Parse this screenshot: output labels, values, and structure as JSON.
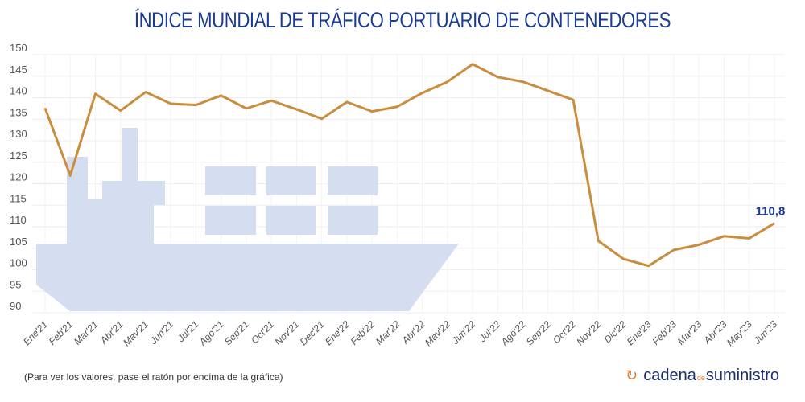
{
  "chart_data": {
    "type": "line",
    "title": "ÍNDICE MUNDIAL DE TRÁFICO PORTUARIO DE CONTENEDORES",
    "categories": [
      "Ene'21",
      "Feb'21",
      "Mar'21",
      "Abr'21",
      "May'21",
      "Jun'21",
      "Jul'21",
      "Ago'21",
      "Sep'21",
      "Oct'21",
      "Nov'21",
      "Dec'21",
      "Ene'22",
      "Feb'22",
      "Mar'22",
      "Abr'22",
      "May'22",
      "Jun'22",
      "Jul'22",
      "Ago'22",
      "Sep'22",
      "Oct'22",
      "Nov'22",
      "Dic'22",
      "Ene'23",
      "Feb'23",
      "Mar'23",
      "Abr'23",
      "May'23",
      "Jun'23"
    ],
    "values": [
      137.6,
      121.9,
      140.9,
      137.0,
      141.3,
      138.6,
      138.3,
      140.5,
      137.5,
      139.3,
      137.3,
      135.1,
      139.0,
      136.8,
      137.9,
      141.1,
      143.7,
      147.8,
      144.8,
      143.7,
      141.6,
      139.5,
      106.7,
      102.5,
      100.9,
      104.6,
      105.8,
      107.8,
      107.3,
      110.8
    ],
    "ylim": [
      90,
      150
    ],
    "yticks": [
      90,
      95,
      100,
      105,
      110,
      115,
      120,
      125,
      130,
      135,
      140,
      145,
      150
    ],
    "grid": true,
    "last_label": "110,8",
    "line_color": "#c98d3d",
    "label_color": "#1b3c94",
    "background_graphic": "container-ship"
  },
  "footer": {
    "note": "(Para ver los valores, pase el ratón por encima de la gráfica)",
    "logo_main": "cadena",
    "logo_de": "de",
    "logo_end": "suministro"
  }
}
